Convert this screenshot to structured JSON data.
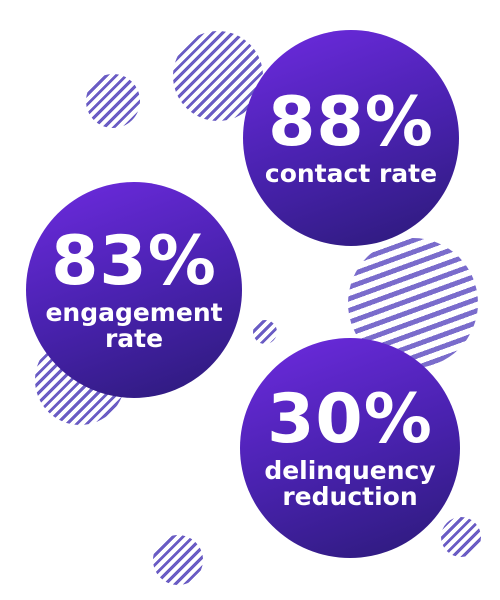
{
  "stats": [
    {
      "value": "88%",
      "label": "contact rate"
    },
    {
      "value": "83%",
      "label": "engagement rate"
    },
    {
      "value": "30%",
      "label": "delinquency reduction"
    }
  ]
}
